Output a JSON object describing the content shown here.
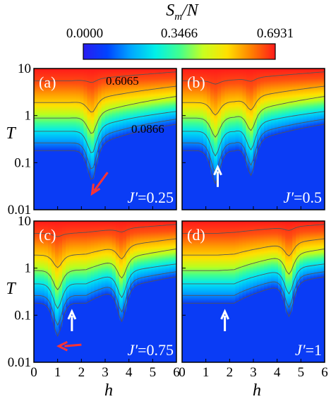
{
  "colorbar": {
    "title": "S",
    "title_sub": "m",
    "title_rest": "/N",
    "tick_labels": [
      "0.0000",
      "0.3466",
      "0.6931"
    ],
    "range": [
      0,
      0.6931
    ],
    "colormap": [
      "#2a1cf0",
      "#0044ff",
      "#00a8ff",
      "#00f0e8",
      "#40ff90",
      "#c8ff20",
      "#ffe000",
      "#ff8000",
      "#ff1a1a"
    ]
  },
  "axes": {
    "ylabel": "T",
    "xlabel": "h",
    "y_ticks": [
      "10",
      "1",
      "0.1",
      "0.01"
    ],
    "x_ticks": [
      "0",
      "1",
      "2",
      "3",
      "4",
      "5",
      "6"
    ],
    "xlim": [
      0,
      6
    ],
    "ylim": [
      0.01,
      10
    ],
    "yscale": "log"
  },
  "contour_labels": {
    "upper": "0.6065",
    "lower": "0.0866"
  },
  "colors": {
    "arrow_red": "#ff3333",
    "arrow_white": "#ffffff",
    "contour": "#555555"
  },
  "chart_data": [
    {
      "type": "heatmap",
      "panel": "(a)",
      "param_prefix": "J′",
      "param_value": "=0.25",
      "dip_h": [
        2.45
      ],
      "contours_T": [
        {
          "level": 0.0866,
          "x": [
            0,
            1,
            1.5,
            2,
            2.2,
            2.4,
            2.6,
            3,
            4,
            5,
            6
          ],
          "y": [
            0.25,
            0.22,
            0.19,
            0.13,
            0.08,
            0.03,
            0.035,
            0.5,
            0.95,
            1.2,
            1.4
          ]
        }
      ],
      "annotations": [
        {
          "type": "arrow",
          "color": "red",
          "at_h": 2.45,
          "at_T": 0.022
        }
      ]
    },
    {
      "type": "heatmap",
      "panel": "(b)",
      "param_prefix": "J′",
      "param_value": "=0.5",
      "dip_h": [
        1.4,
        2.9
      ],
      "annotations": [
        {
          "type": "arrow",
          "color": "white",
          "at_h": 1.5,
          "at_T": 0.08
        }
      ]
    },
    {
      "type": "heatmap",
      "panel": "(c)",
      "param_prefix": "J′",
      "param_value": "=0.75",
      "dip_h": [
        1.0,
        3.7
      ],
      "annotations": [
        {
          "type": "arrow",
          "color": "white",
          "at_h": 1.6,
          "at_T": 0.12
        },
        {
          "type": "arrow",
          "color": "red",
          "at_h": 1.05,
          "at_T": 0.022
        }
      ]
    },
    {
      "type": "heatmap",
      "panel": "(d)",
      "param_prefix": "J′",
      "param_value": "=1",
      "dip_h": [
        4.5
      ],
      "annotations": [
        {
          "type": "arrow",
          "color": "white",
          "at_h": 1.8,
          "at_T": 0.12
        }
      ]
    }
  ]
}
